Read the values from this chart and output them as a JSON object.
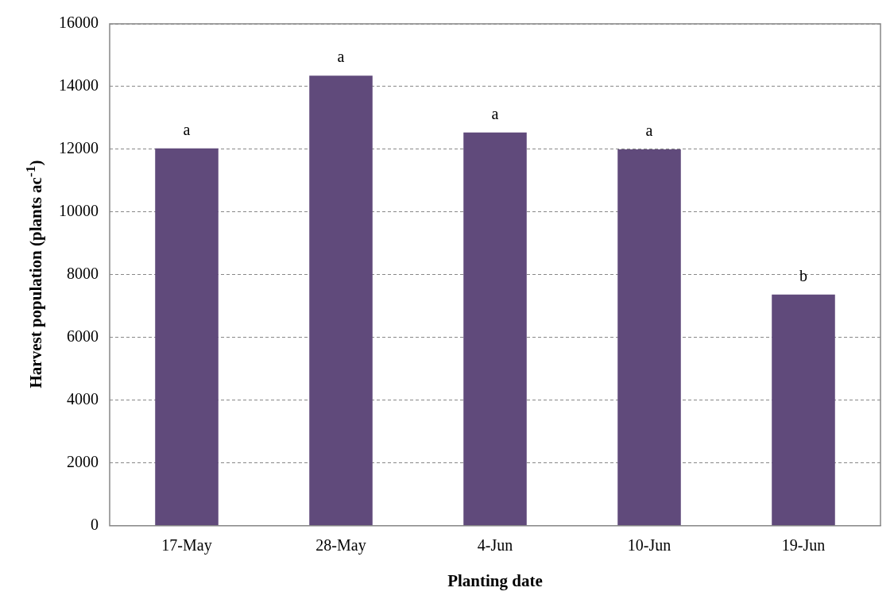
{
  "chart_data": {
    "type": "bar",
    "xlabel": "Planting date",
    "ylabel": "Harvest population (plants ac$^{-1}$)",
    "categories": [
      "17-May",
      "28-May",
      "4-Jun",
      "10-Jun",
      "19-Jun"
    ],
    "values": [
      12030,
      14350,
      12540,
      12000,
      7370
    ],
    "color": "#604a7b",
    "ylim": [
      0,
      16000
    ],
    "yticks": [
      0,
      2000,
      4000,
      6000,
      8000,
      10000,
      12000,
      14000,
      16000
    ],
    "grid": "y",
    "annotations": [
      {
        "text": "a",
        "x": "17-May",
        "y": 12030
      },
      {
        "text": "a",
        "x": "28-May",
        "y": 14350
      },
      {
        "text": "a",
        "x": "4-Jun",
        "y": 12540
      },
      {
        "text": "a",
        "x": "10-Jun",
        "y": 12000
      },
      {
        "text": "b",
        "x": "19-Jun",
        "y": 7370
      }
    ]
  }
}
